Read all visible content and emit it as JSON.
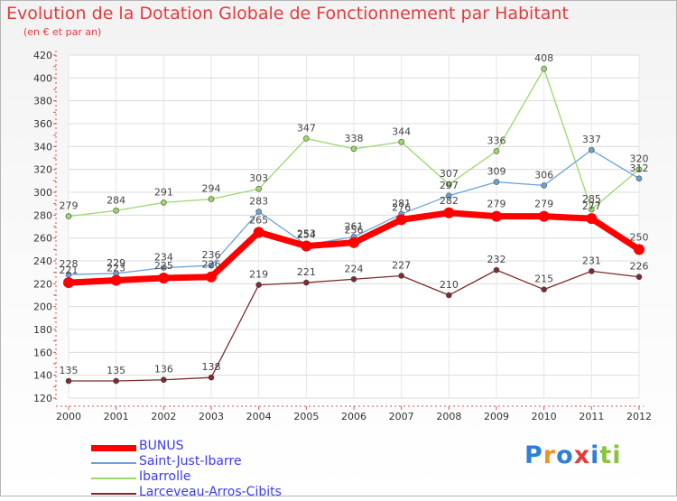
{
  "header": {
    "title": "Evolution de la Dotation Globale de Fonctionnement par Habitant",
    "subtitle": "(en € et par an)"
  },
  "logo": {
    "text": "Proxiti",
    "letter_colors": [
      "#2f7fd8",
      "#e8962a",
      "#2f7fd8",
      "#e23c3c",
      "#2f7fd8",
      "#8ac43f",
      "#8ac43f"
    ]
  },
  "chart_data": {
    "type": "line",
    "title": "Evolution de la Dotation Globale de Fonctionnement par Habitant",
    "subtitle": "(en € et par an)",
    "xlabel": "",
    "ylabel": "",
    "x": [
      "2000",
      "2001",
      "2002",
      "2003",
      "2004",
      "2005",
      "2006",
      "2007",
      "2008",
      "2009",
      "2010",
      "2011",
      "2012"
    ],
    "ylim": [
      120,
      420
    ],
    "yticks": [
      120,
      140,
      160,
      180,
      200,
      220,
      240,
      260,
      280,
      300,
      320,
      340,
      360,
      380,
      400,
      420
    ],
    "grid": true,
    "legend_position": "bottom-left",
    "series": [
      {
        "name": "Larceveau-Arros-Cibits",
        "color": "#7d2b2e",
        "values": [
          135,
          135,
          136,
          138,
          219,
          221,
          224,
          227,
          210,
          232,
          215,
          231,
          226
        ],
        "labels": [
          "135",
          "135",
          "136",
          "138",
          "219",
          "221",
          "224",
          "227",
          "210",
          "232",
          "215",
          "231",
          "226"
        ]
      },
      {
        "name": "Ibarrolle",
        "color": "#9ad86a",
        "values": [
          279,
          284,
          291,
          294,
          303,
          347,
          338,
          344,
          307,
          336,
          408,
          285,
          320
        ],
        "labels": [
          "279",
          "284",
          "291",
          "294",
          "303",
          "347",
          "338",
          "344",
          "307",
          "336",
          "408",
          "285",
          "320"
        ]
      },
      {
        "name": "Saint-Just-Ibarre",
        "color": "#6ba2d6",
        "values": [
          228,
          229,
          234,
          236,
          283,
          254,
          261,
          281,
          297,
          309,
          306,
          337,
          312
        ],
        "labels": [
          "228",
          "229",
          "234",
          "236",
          "283",
          "254",
          "261",
          "281",
          "297",
          "309",
          "306",
          "337",
          "312"
        ]
      },
      {
        "name": "BUNUS",
        "color": "#ff0000",
        "values": [
          221,
          223,
          225,
          226,
          265,
          253,
          256,
          276,
          282,
          279,
          279,
          277,
          250
        ],
        "labels": [
          "221",
          "223",
          "225",
          "226",
          "265",
          "253",
          "256",
          "276",
          "282",
          "279",
          "279",
          "277",
          "250"
        ]
      }
    ],
    "legend": [
      "BUNUS",
      "Saint-Just-Ibarre",
      "Ibarrolle",
      "Larceveau-Arros-Cibits"
    ]
  }
}
